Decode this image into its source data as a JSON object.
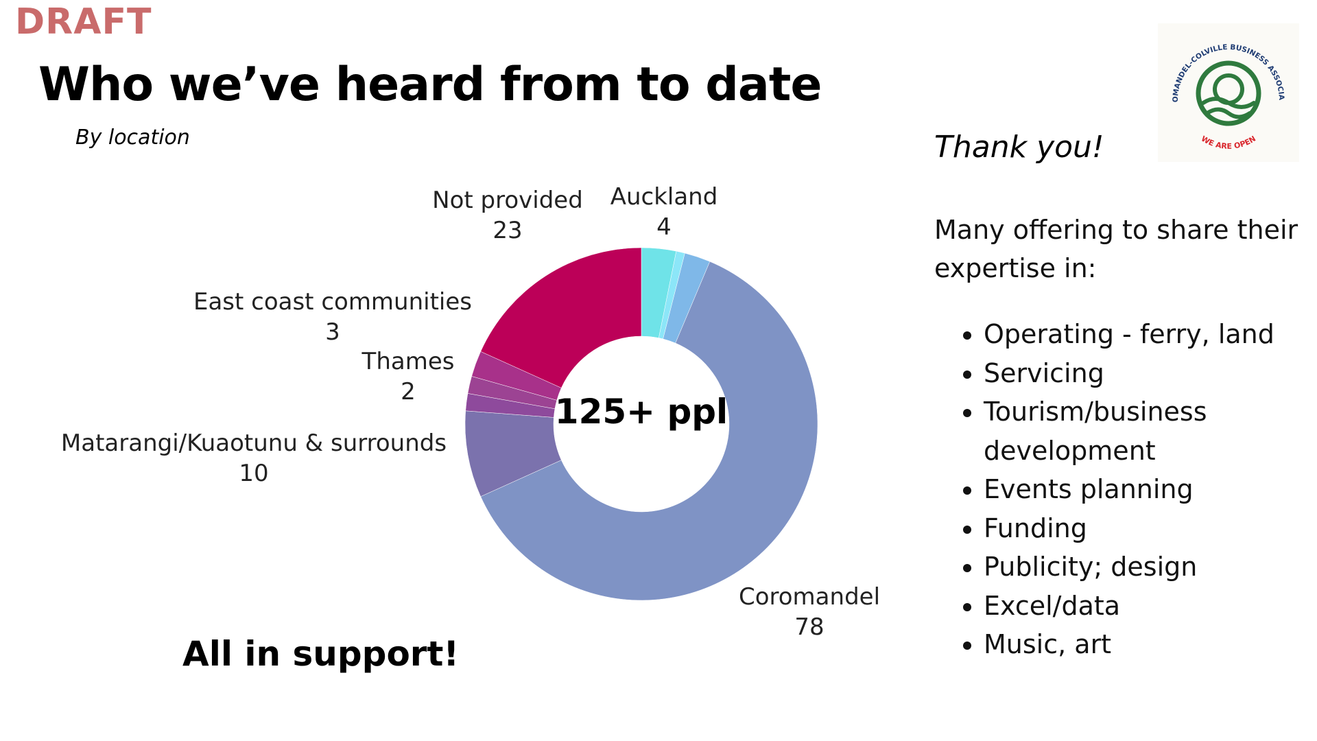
{
  "draft_label": "DRAFT",
  "header": {
    "title": "Who we’ve heard from to date",
    "subtitle": "By location"
  },
  "chart_data": {
    "type": "pie",
    "style": "donut",
    "title": "",
    "subtitle": "By location",
    "center_label": "125+ ppl",
    "categories": [
      "Auckland",
      "",
      "",
      "Coromandel",
      "Matarangi/Kuaotunu & surrounds",
      "",
      "Thames",
      "East coast communities",
      "Not provided"
    ],
    "values": [
      4,
      1,
      3,
      78,
      10,
      2,
      2,
      3,
      23
    ],
    "colors": [
      "#6fe3e8",
      "#8ce6f8",
      "#7fb8e8",
      "#7f93c5",
      "#7b72ad",
      "#8e4a9c",
      "#9c4393",
      "#a8318a",
      "#bc0058"
    ],
    "labels": [
      {
        "label": "Not provided",
        "value": "23"
      },
      {
        "label": "Auckland",
        "value": "4"
      },
      {
        "label": "East coast communities",
        "value": "3"
      },
      {
        "label": "Thames",
        "value": "2"
      },
      {
        "label": "Matarangi/Kuaotunu & surrounds",
        "value": "10"
      },
      {
        "label": "Coromandel",
        "value": "78"
      }
    ],
    "legend": "none"
  },
  "support_text": "All in support!",
  "right_panel": {
    "thanks": "Thank you!",
    "intro": "Many offering to share their expertise in:",
    "items": [
      "Operating - ferry, land",
      "Servicing",
      "Tourism/business development",
      "Events planning",
      "Funding",
      "Publicity; design",
      "Excel/data",
      "Music, art"
    ]
  },
  "logo": {
    "icon": "coromandel-colville-logo-icon",
    "top_text": "COROMANDEL-COLVILLE BUSINESS ASSOCIATION",
    "bottom_text": "WE ARE OPEN",
    "ring_color": "#2f7a3e",
    "text_color": "#1f3c73",
    "accent_color": "#d9262c"
  }
}
